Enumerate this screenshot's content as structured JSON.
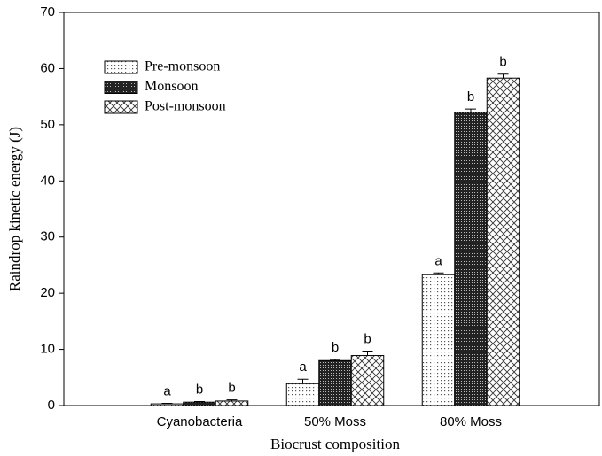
{
  "chart_data": {
    "type": "bar",
    "x_label": "Biocrust composition",
    "y_label": "Raindrop kinetic energy (J)",
    "categories": [
      "Cyanobacteria",
      "50% Moss",
      "80% Moss"
    ],
    "series": [
      {
        "name": "Pre-monsoon",
        "pattern": "dots",
        "color": "#000000",
        "values": [
          0.3,
          3.9,
          23.3
        ],
        "errors": [
          0.1,
          0.8,
          0.3
        ],
        "letters": [
          "a",
          "a",
          "a"
        ]
      },
      {
        "name": "Monsoon",
        "pattern": "grid",
        "color": "#000000",
        "values": [
          0.6,
          8.0,
          52.2
        ],
        "errors": [
          0.1,
          0.2,
          0.6
        ],
        "letters": [
          "b",
          "b",
          "b"
        ]
      },
      {
        "name": "Post-monsoon",
        "pattern": "crosshatch",
        "color": "#000000",
        "values": [
          0.8,
          8.9,
          58.3
        ],
        "errors": [
          0.2,
          0.8,
          0.7
        ],
        "letters": [
          "b",
          "b",
          "b"
        ]
      }
    ],
    "ylim": [
      0,
      70
    ],
    "yticks": [
      0,
      10,
      20,
      30,
      40,
      50,
      60,
      70
    ],
    "grid": false,
    "legend": "upper left"
  }
}
